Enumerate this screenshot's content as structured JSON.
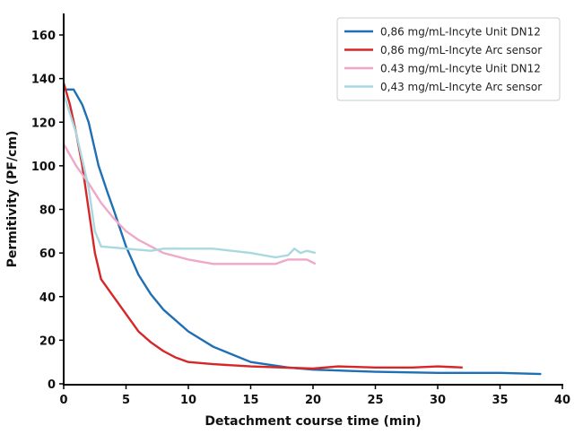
{
  "chart_data": {
    "type": "line",
    "title": "",
    "xlabel": "Detachment course time (min)",
    "ylabel": "Permitivity (PF/cm)",
    "xlim": [
      0,
      40
    ],
    "ylim": [
      0,
      170
    ],
    "xticks": [
      0,
      5,
      10,
      15,
      20,
      25,
      30,
      35,
      40
    ],
    "yticks": [
      0,
      20,
      40,
      60,
      80,
      100,
      120,
      140,
      160
    ],
    "grid": false,
    "legend_position": "top-right",
    "series": [
      {
        "name": "0,86 mg/mL-Incyte Unit DN12",
        "color": "#1f6fb4",
        "points": [
          [
            0,
            135
          ],
          [
            0.8,
            135
          ],
          [
            1.5,
            128
          ],
          [
            2,
            120
          ],
          [
            2.8,
            100
          ],
          [
            3.5,
            88
          ],
          [
            4,
            80
          ],
          [
            5,
            63
          ],
          [
            6,
            50
          ],
          [
            7,
            41
          ],
          [
            8,
            34
          ],
          [
            10,
            24
          ],
          [
            12,
            17
          ],
          [
            15,
            10
          ],
          [
            18,
            7.5
          ],
          [
            20,
            6.5
          ],
          [
            25,
            5.5
          ],
          [
            30,
            5
          ],
          [
            35,
            5
          ],
          [
            38.3,
            4.5
          ]
        ]
      },
      {
        "name": "0,86 mg/mL-Incyte Arc sensor",
        "color": "#d62728",
        "points": [
          [
            0,
            138
          ],
          [
            0.5,
            128
          ],
          [
            1,
            115
          ],
          [
            1.5,
            100
          ],
          [
            2,
            80
          ],
          [
            2.5,
            60
          ],
          [
            3,
            48
          ],
          [
            4,
            40
          ],
          [
            5,
            32
          ],
          [
            6,
            24
          ],
          [
            7,
            19
          ],
          [
            8,
            15
          ],
          [
            9,
            12
          ],
          [
            10,
            10
          ],
          [
            12,
            9
          ],
          [
            15,
            8
          ],
          [
            20,
            7
          ],
          [
            22,
            8
          ],
          [
            25,
            7.5
          ],
          [
            28,
            7.5
          ],
          [
            30,
            8
          ],
          [
            32,
            7.5
          ]
        ]
      },
      {
        "name": "0.43 mg/mL-Incyte Unit DN12",
        "color": "#f0a8c8",
        "points": [
          [
            0,
            110
          ],
          [
            1,
            100
          ],
          [
            2,
            92
          ],
          [
            3,
            83
          ],
          [
            4,
            76
          ],
          [
            5,
            70
          ],
          [
            6,
            66
          ],
          [
            7,
            63
          ],
          [
            8,
            60
          ],
          [
            10,
            57
          ],
          [
            12,
            55
          ],
          [
            17,
            55
          ],
          [
            18,
            57
          ],
          [
            19.5,
            57
          ],
          [
            20.2,
            55
          ]
        ]
      },
      {
        "name": "0,43 mg/mL-Incyte Arc sensor",
        "color": "#a8d8e0",
        "points": [
          [
            0,
            133
          ],
          [
            1,
            115
          ],
          [
            2,
            90
          ],
          [
            2.5,
            70
          ],
          [
            3,
            63
          ],
          [
            5,
            62
          ],
          [
            7,
            61
          ],
          [
            8,
            62
          ],
          [
            12,
            62
          ],
          [
            15,
            60
          ],
          [
            17,
            58
          ],
          [
            18,
            59
          ],
          [
            18.5,
            62
          ],
          [
            19,
            60
          ],
          [
            19.5,
            61
          ],
          [
            20.2,
            60
          ]
        ]
      }
    ]
  }
}
